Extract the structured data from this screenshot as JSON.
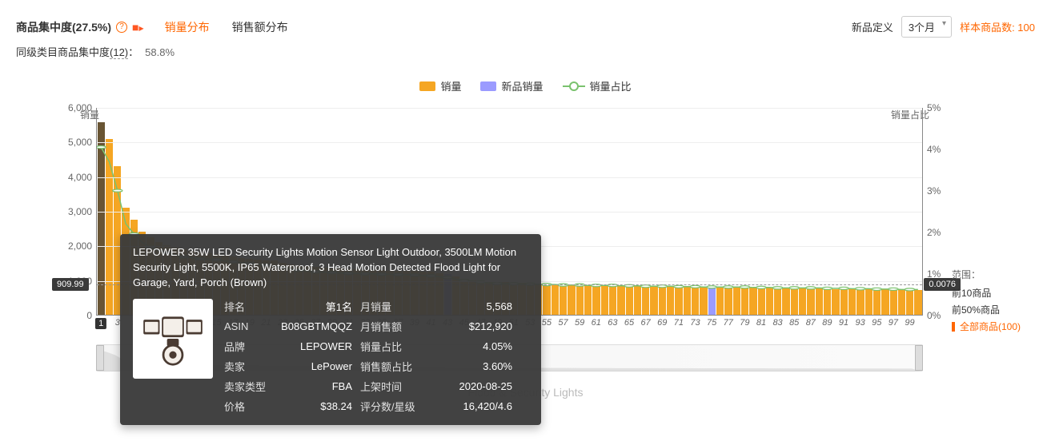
{
  "header": {
    "title_pre": "商品集中度",
    "title_pct": "(27.5%)",
    "tabs": [
      "销量分布",
      "销售额分布"
    ],
    "active_tab": 0,
    "row2_label": "同级类目商品集中度",
    "row2_n": "(12)",
    "row2_sep": "：",
    "row2_val": "58.8%",
    "right_label": "新品定义",
    "select_value": "3个月",
    "sample_pre": "样本商品数: ",
    "sample_n": "100"
  },
  "legend": {
    "items": [
      {
        "label": "销量",
        "color": "#f5a623"
      },
      {
        "label": "新品销量",
        "color": "#9b9bff"
      },
      {
        "label": "销量占比",
        "color": "#7ac26e",
        "type": "line"
      }
    ]
  },
  "chart": {
    "y_left_title": "销量",
    "y_right_title": "销量占比",
    "y_left": {
      "min": 0,
      "max": 6000,
      "step": 1000
    },
    "y_right": {
      "min": 0,
      "max": 0.05,
      "step": 0.01,
      "fmt_pct": true
    },
    "bar_color": "#f5a623",
    "bar_color_new": "#9b9bff",
    "line_color": "#7ac26e",
    "grid_color": "#eeeeee",
    "background": "#ffffff",
    "ref_left_value": 909.99,
    "ref_right_value": 0.0076,
    "ref_left_label": "909.99",
    "ref_right_label": "0.0076",
    "highlight_index": 0,
    "new_indices": [
      42,
      74
    ],
    "values": [
      5568,
      5080,
      4300,
      3100,
      2750,
      2400,
      2250,
      2100,
      2000,
      1950,
      1900,
      1850,
      1800,
      1780,
      1750,
      1700,
      1680,
      1650,
      1620,
      1600,
      1580,
      1560,
      1500,
      1450,
      1420,
      1400,
      1380,
      1360,
      1340,
      1330,
      1320,
      1310,
      1300,
      1300,
      1290,
      1280,
      1280,
      1270,
      1260,
      1250,
      1240,
      1200,
      1180,
      1100,
      1050,
      1000,
      980,
      960,
      950,
      940,
      930,
      920,
      910,
      900,
      890,
      880,
      870,
      860,
      860,
      850,
      850,
      840,
      840,
      830,
      830,
      830,
      820,
      820,
      820,
      820,
      810,
      810,
      810,
      800,
      800,
      800,
      790,
      790,
      790,
      780,
      780,
      780,
      770,
      770,
      770,
      760,
      760,
      760,
      750,
      750,
      750,
      740,
      740,
      740,
      730,
      730,
      730,
      720,
      720,
      720
    ],
    "share": [
      0.0405,
      0.037,
      0.03,
      0.022,
      0.0195,
      0.0175,
      0.0163,
      0.0155,
      0.015,
      0.0145,
      0.014,
      0.0138,
      0.0135,
      0.0134,
      0.0133,
      0.013,
      0.0128,
      0.0126,
      0.0124,
      0.0122,
      0.012,
      0.0118,
      0.0114,
      0.011,
      0.0108,
      0.0106,
      0.0104,
      0.0103,
      0.0102,
      0.0101,
      0.01,
      0.01,
      0.0099,
      0.0099,
      0.0098,
      0.0098,
      0.0097,
      0.0097,
      0.0096,
      0.0095,
      0.0094,
      0.0092,
      0.009,
      0.0086,
      0.0083,
      0.0081,
      0.0079,
      0.0077,
      0.0076,
      0.0076,
      0.0075,
      0.0075,
      0.0074,
      0.0074,
      0.0073,
      0.0073,
      0.0072,
      0.0072,
      0.0072,
      0.0071,
      0.0071,
      0.0071,
      0.0071,
      0.007,
      0.007,
      0.007,
      0.0069,
      0.0069,
      0.0069,
      0.0069,
      0.0068,
      0.0068,
      0.0068,
      0.0067,
      0.0067,
      0.0067,
      0.0067,
      0.0067,
      0.0067,
      0.0066,
      0.0066,
      0.0066,
      0.0065,
      0.0065,
      0.0065,
      0.0065,
      0.0065,
      0.0065,
      0.0064,
      0.0064,
      0.0064,
      0.0063,
      0.0063,
      0.0063,
      0.0062,
      0.0062,
      0.0062,
      0.0061,
      0.0061,
      0.0061
    ],
    "x_tick_step": 2,
    "x_tick_start": 3
  },
  "range_panel": {
    "title": "范围：",
    "items": [
      {
        "label": "前10商品"
      },
      {
        "label": "前50%商品"
      },
      {
        "label": "全部商品(100)",
        "active": true
      }
    ],
    "active_color": "#ff6600"
  },
  "tooltip": {
    "title": "LEPOWER 35W LED Security Lights Motion Sensor Light Outdoor, 3500LM Motion Security Light, 5500K, IP65 Waterproof, 3 Head Motion Detected Flood Light for Garage, Yard, Porch (Brown)",
    "rows": [
      [
        "排名",
        "第1名",
        "月销量",
        "5,568"
      ],
      [
        "ASIN",
        "B08GBTMQQZ",
        "月销售额",
        "$212,920"
      ],
      [
        "品牌",
        "LEPOWER",
        "销量占比",
        "4.05%"
      ],
      [
        "卖家",
        "LePower",
        "销售额占比",
        "3.60%"
      ],
      [
        "卖家类型",
        "FBA",
        "上架时间",
        "2020-08-25"
      ],
      [
        "价格",
        "$38.24",
        "评分数/星级",
        "16,420/4.6"
      ]
    ]
  },
  "footer": "Flood & Security Lights"
}
